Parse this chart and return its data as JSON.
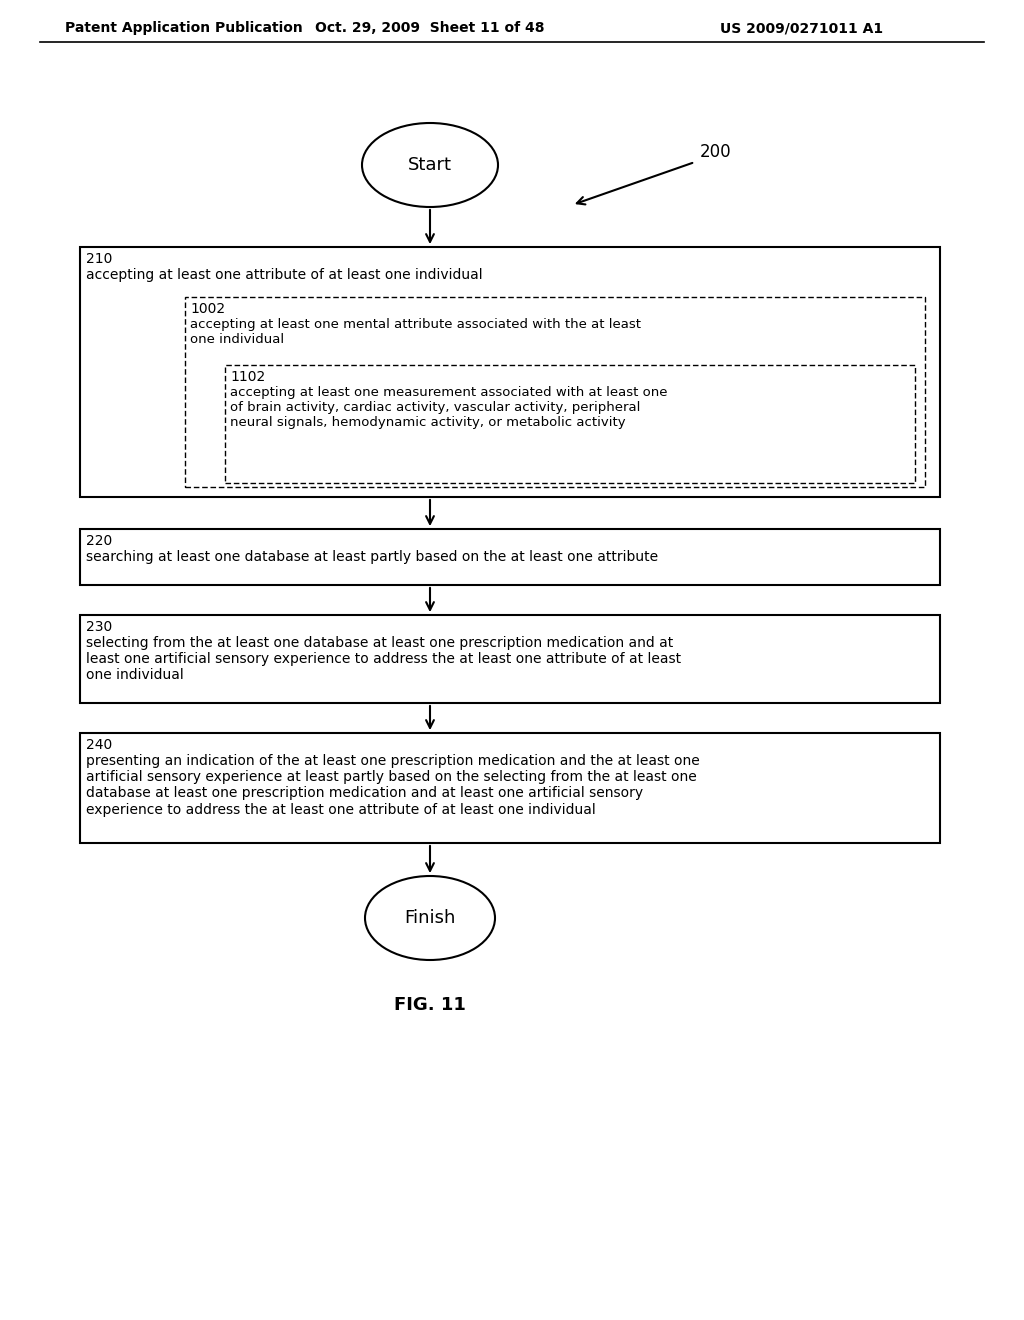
{
  "bg_color": "#ffffff",
  "header_left": "Patent Application Publication",
  "header_mid": "Oct. 29, 2009  Sheet 11 of 48",
  "header_right": "US 2009/0271011 A1",
  "fig_label": "FIG. 11",
  "diagram_label": "200",
  "start_label": "Start",
  "finish_label": "Finish",
  "box210_id": "210",
  "box210_text": "accepting at least one attribute of at least one individual",
  "box1002_id": "1002",
  "box1002_text": "accepting at least one mental attribute associated with the at least\none individual",
  "box1102_id": "1102",
  "box1102_text": "accepting at least one measurement associated with at least one\nof brain activity, cardiac activity, vascular activity, peripheral\nneural signals, hemodynamic activity, or metabolic activity",
  "box220_id": "220",
  "box220_text": "searching at least one database at least partly based on the at least one attribute",
  "box230_id": "230",
  "box230_text": "selecting from the at least one database at least one prescription medication and at\nleast one artificial sensory experience to address the at least one attribute of at least\none individual",
  "box240_id": "240",
  "box240_text": "presenting an indication of the at least one prescription medication and the at least one\nartificial sensory experience at least partly based on the selecting from the at least one\ndatabase at least one prescription medication and at least one artificial sensory\nexperience to address the at least one attribute of at least one individual"
}
